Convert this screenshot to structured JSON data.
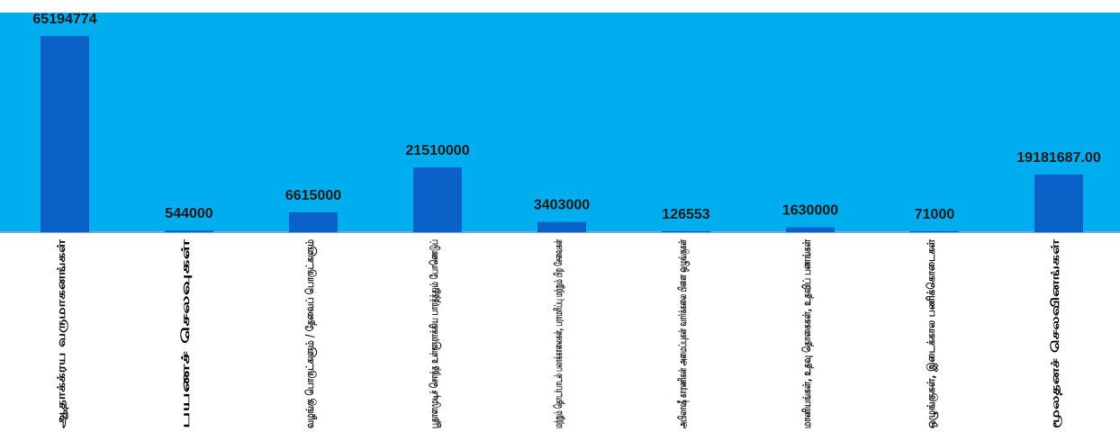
{
  "chart_data": {
    "type": "bar",
    "categories": [
      "ஆதாக்க்ரய வருமாகனங்கள்",
      "பயணச் செலவுகள்",
      "வழங்கு பொருட்களும் / தேவைப் பொருட்களும்",
      "பூதாளமுடிச் சொந்த உள்ளூராக்கிய பாரத்த்தும் போணெடுப்",
      "மற்றும் தொடர்பாடல் பலாக்காலைகள், பராமரிப்பு மற்றும் பிற சேவைகள்",
      "அபிலாஷீ காரணிகள் அமைப்புகள் வார்க்கலை பிளை ஒழுங்குகள்",
      "மானியங்கள், உதவு தொகைகள், உதவிப் பணங்கள்",
      "ஒழுங்குகள், இடைக்கால பணிக்கொடைகள்",
      "மூலதனச் செலவினங்கள்"
    ],
    "values": [
      65194774,
      544000,
      6615000,
      21510000,
      3403000,
      126553,
      1630000,
      71000,
      19181687.0
    ],
    "data_labels": [
      "65194774",
      "544000",
      "6615000",
      "21510000",
      "3403000",
      "126553",
      "1630000",
      "71000",
      "19181687.00"
    ],
    "ylim": [
      0,
      67000000
    ],
    "plot_color": "#00aeef",
    "bar_color": "#0a62c8",
    "grid": false,
    "legend": "none"
  }
}
